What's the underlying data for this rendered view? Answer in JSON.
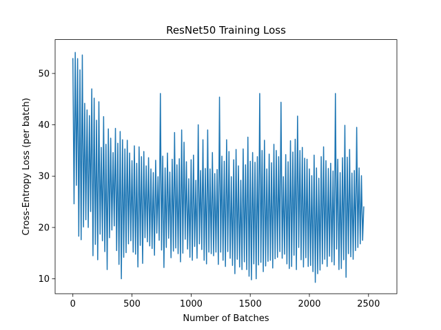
{
  "chart_data": {
    "type": "line",
    "title": "ResNet50 Training Loss",
    "xlabel": "Number of Batches",
    "ylabel": "Cross-Entropy Loss (per batch)",
    "xlim": [
      -150,
      2740
    ],
    "ylim": [
      7.1,
      56.6
    ],
    "xticks": [
      0,
      500,
      1000,
      1500,
      2000,
      2500
    ],
    "yticks": [
      10,
      20,
      30,
      40,
      50
    ],
    "grid": false,
    "legend": "none",
    "series_color": "#1f77b4",
    "series": [
      {
        "x_start": 0,
        "x_step": 10,
        "values": [
          53.0,
          24.6,
          54.1,
          28.2,
          52.9,
          18.3,
          50.7,
          17.6,
          53.6,
          20.1,
          44.2,
          21.5,
          42.9,
          20.0,
          41.8,
          23.1,
          47.0,
          14.5,
          45.2,
          16.7,
          40.9,
          13.7,
          44.5,
          18.7,
          35.6,
          17.4,
          41.6,
          15.3,
          36.2,
          11.8,
          39.2,
          18.0,
          37.4,
          19.5,
          34.6,
          20.3,
          39.3,
          15.5,
          36.4,
          12.8,
          38.7,
          10.0,
          37.1,
          14.2,
          35.3,
          15.1,
          37.0,
          16.8,
          34.5,
          17.4,
          33.0,
          15.2,
          35.9,
          14.8,
          32.5,
          12.3,
          35.7,
          16.5,
          33.8,
          13.0,
          34.8,
          18.0,
          32.0,
          17.2,
          33.6,
          16.4,
          31.4,
          15.9,
          30.7,
          14.6,
          33.1,
          18.9,
          29.9,
          17.5,
          46.1,
          15.6,
          33.9,
          12.2,
          31.6,
          16.1,
          34.5,
          17.9,
          30.8,
          14.1,
          33.3,
          15.4,
          38.5,
          16.0,
          32.2,
          14.9,
          33.4,
          13.3,
          39.0,
          15.0,
          36.6,
          17.7,
          32.8,
          15.8,
          29.5,
          14.2,
          33.2,
          13.6,
          34.1,
          16.3,
          29.2,
          14.0,
          40.0,
          16.8,
          31.1,
          15.7,
          37.1,
          13.6,
          31.5,
          12.9,
          39.0,
          15.2,
          31.4,
          14.9,
          34.6,
          14.5,
          30.5,
          15.2,
          31.3,
          12.8,
          45.4,
          15.2,
          33.9,
          13.6,
          32.9,
          12.4,
          37.1,
          15.3,
          34.8,
          14.0,
          29.9,
          12.6,
          33.2,
          11.0,
          35.2,
          13.8,
          32.0,
          12.3,
          29.2,
          11.8,
          35.3,
          13.3,
          32.2,
          11.8,
          37.6,
          10.5,
          32.9,
          9.8,
          34.6,
          12.9,
          32.7,
          10.0,
          33.8,
          12.7,
          46.1,
          13.2,
          35.0,
          11.4,
          37.0,
          12.5,
          31.4,
          13.4,
          34.3,
          13.6,
          32.6,
          12.1,
          36.2,
          13.9,
          35.0,
          14.2,
          33.8,
          15.3,
          44.4,
          14.0,
          29.9,
          14.8,
          34.2,
          12.9,
          32.8,
          12.0,
          36.9,
          12.4,
          34.7,
          14.6,
          37.2,
          11.8,
          41.7,
          16.1,
          35.0,
          13.7,
          35.6,
          12.3,
          33.5,
          14.1,
          33.3,
          12.4,
          31.4,
          12.6,
          30.1,
          11.4,
          34.1,
          9.3,
          31.6,
          11.0,
          29.6,
          11.7,
          33.8,
          12.9,
          35.7,
          13.8,
          33.0,
          12.4,
          31.5,
          14.4,
          32.5,
          13.3,
          31.0,
          12.7,
          46.1,
          15.8,
          33.3,
          11.8,
          30.7,
          12.0,
          33.6,
          13.7,
          39.9,
          10.3,
          33.7,
          14.9,
          35.2,
          14.3,
          30.6,
          13.8,
          31.1,
          15.5,
          39.5,
          16.1,
          31.6,
          16.8,
          30.1,
          17.5,
          24.1
        ]
      }
    ]
  }
}
